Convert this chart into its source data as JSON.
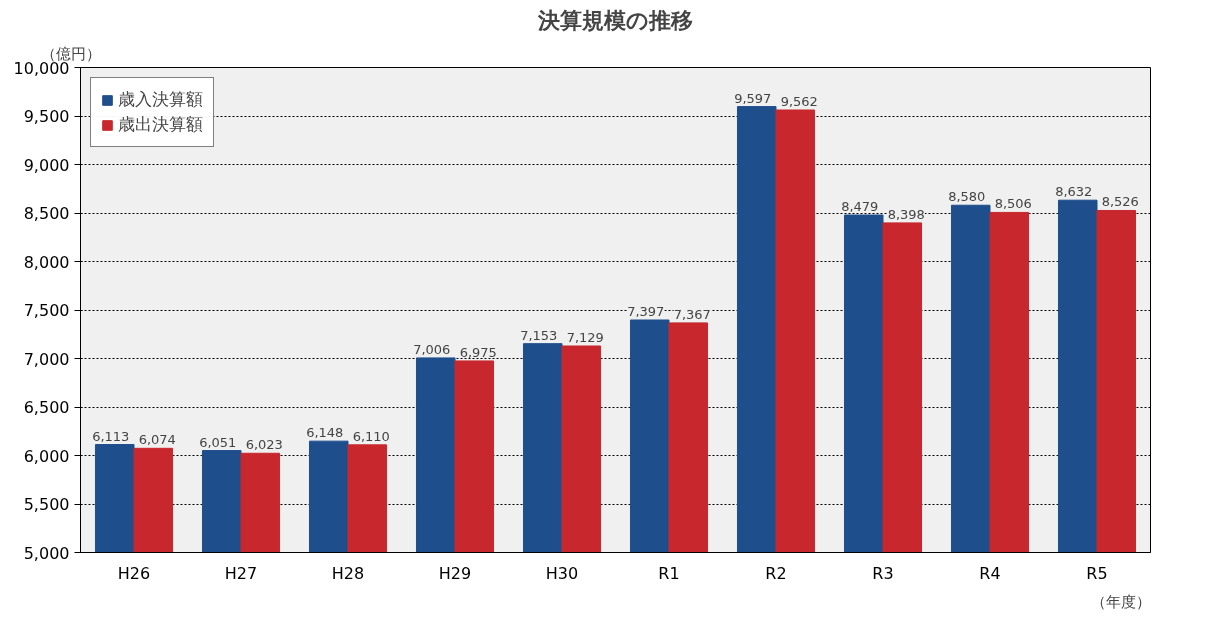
{
  "chart_data": {
    "type": "bar",
    "title": "決算規模の推移",
    "ylabel": "（億円）",
    "xlabel": "（年度）",
    "categories": [
      "H26",
      "H27",
      "H28",
      "H29",
      "H30",
      "R1",
      "R2",
      "R3",
      "R4",
      "R5"
    ],
    "series": [
      {
        "name": "歳入決算額",
        "color": "#1f4e8c",
        "values": [
          6113,
          6051,
          6148,
          7006,
          7153,
          7397,
          9597,
          8479,
          8580,
          8632
        ],
        "value_labels": [
          "6,113",
          "6,051",
          "6,148",
          "7,006",
          "7,153",
          "7,397",
          "9,597",
          "8,479",
          "8,580",
          "8,632"
        ]
      },
      {
        "name": "歳出決算額",
        "color": "#c8282d",
        "values": [
          6074,
          6023,
          6110,
          6975,
          7129,
          7367,
          9562,
          8398,
          8506,
          8526
        ],
        "value_labels": [
          "6,074",
          "6,023",
          "6,110",
          "6,975",
          "7,129",
          "7,367",
          "9,562",
          "8,398",
          "8,506",
          "8,526"
        ]
      }
    ],
    "ylim": [
      5000,
      10000
    ],
    "yticks": [
      {
        "value": 5000,
        "label": "5,000"
      },
      {
        "value": 5500,
        "label": "5,500"
      },
      {
        "value": 6000,
        "label": "6,000"
      },
      {
        "value": 6500,
        "label": "6,500"
      },
      {
        "value": 7000,
        "label": "7,000"
      },
      {
        "value": 7500,
        "label": "7,500"
      },
      {
        "value": 8000,
        "label": "8,000"
      },
      {
        "value": 8500,
        "label": "8,500"
      },
      {
        "value": 9000,
        "label": "9,000"
      },
      {
        "value": 9500,
        "label": "9,500"
      },
      {
        "value": 10000,
        "label": "10,000"
      }
    ],
    "grid": "y",
    "legend": "top left"
  }
}
